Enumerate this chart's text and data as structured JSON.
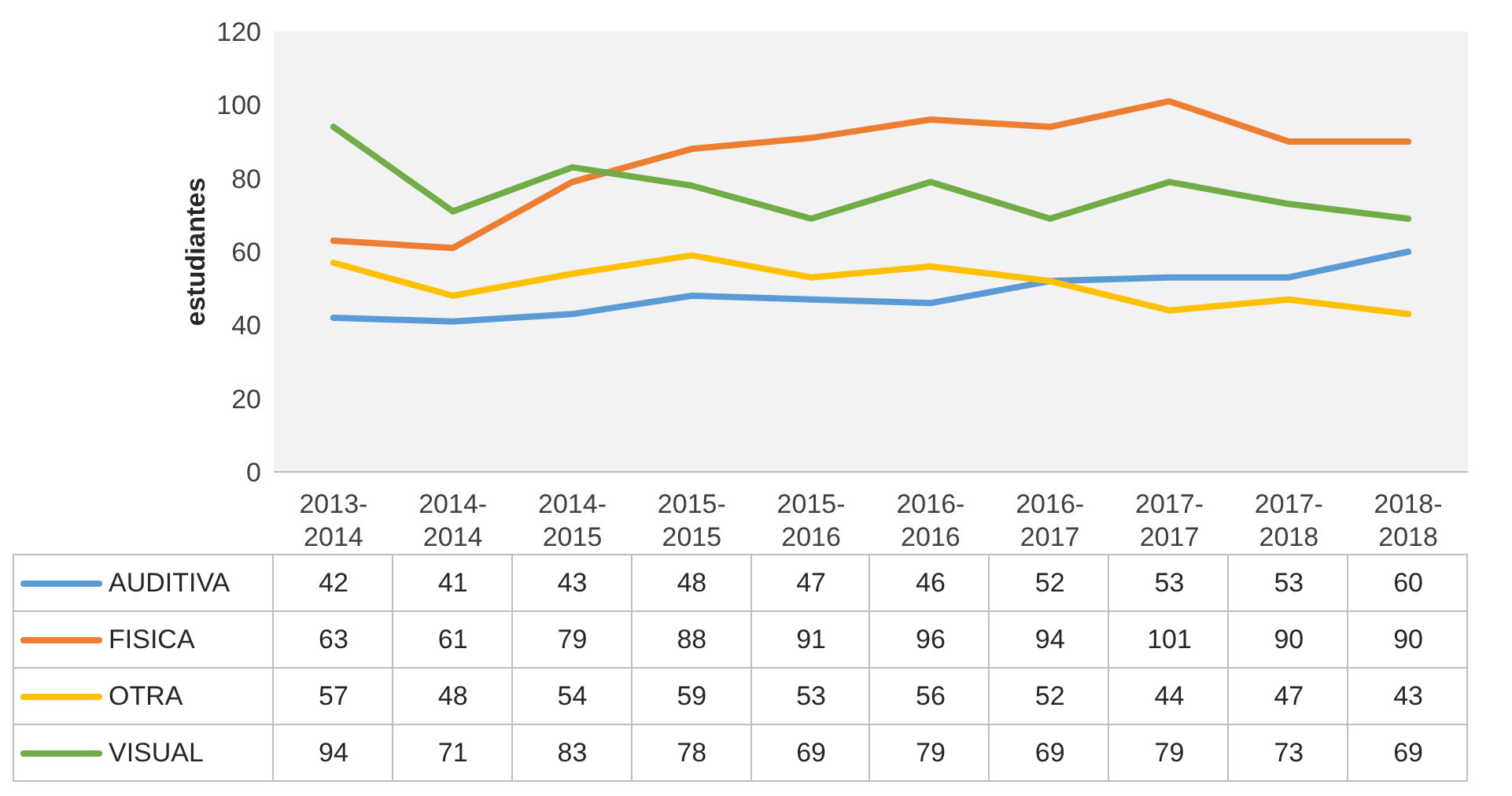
{
  "chart_data": {
    "type": "line",
    "ylabel": "estudiantes",
    "categories": [
      "2013-2014",
      "2014-2014",
      "2014-2015",
      "2015-2015",
      "2015-2016",
      "2016-2016",
      "2016-2017",
      "2017-2017",
      "2017-2018",
      "2018-2018"
    ],
    "series": [
      {
        "name": "AUDITIVA",
        "color": "#5b9bd5",
        "values": [
          42,
          41,
          43,
          48,
          47,
          46,
          52,
          53,
          53,
          60
        ]
      },
      {
        "name": "FISICA",
        "color": "#ed7d31",
        "values": [
          63,
          61,
          79,
          88,
          91,
          96,
          94,
          101,
          90,
          90
        ]
      },
      {
        "name": "OTRA",
        "color": "#ffc000",
        "values": [
          57,
          48,
          54,
          59,
          53,
          56,
          52,
          44,
          47,
          43
        ]
      },
      {
        "name": "VISUAL",
        "color": "#70ad47",
        "values": [
          94,
          71,
          83,
          78,
          69,
          79,
          69,
          79,
          73,
          69
        ]
      }
    ],
    "ylim": [
      0,
      120
    ],
    "yticks": [
      0,
      20,
      40,
      60,
      80,
      100,
      120
    ],
    "legend": "bottom",
    "data_labels": true,
    "marker": "none",
    "line_style": "solid"
  }
}
